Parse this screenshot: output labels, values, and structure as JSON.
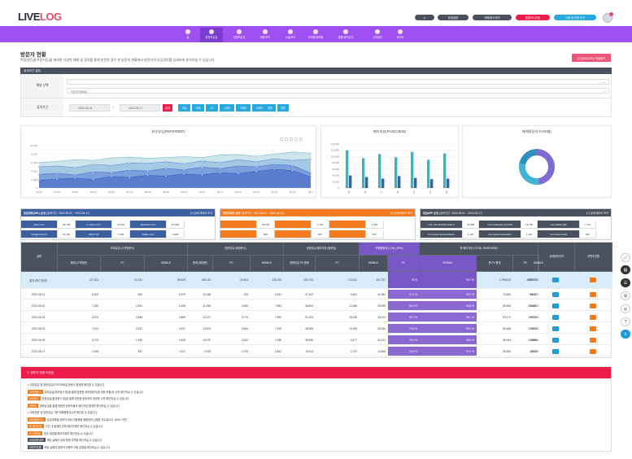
{
  "app": {
    "logo_main": "LIVE",
    "logo_accent": "LOG"
  },
  "top_buttons": [
    {
      "label": "●",
      "color": "#49505e"
    },
    {
      "label": "환경설정",
      "color": "#49505e"
    },
    {
      "label": "매체/광고관리",
      "color": "#49505e"
    },
    {
      "label": "통합모니터링",
      "color": "#ed1c4b"
    },
    {
      "label": "사용 중 연동 도구",
      "color": "#26a9e1"
    }
  ],
  "nav": {
    "items": [
      {
        "label": "홈"
      },
      {
        "label": "방문자유입"
      },
      {
        "label": "컨텐츠분석"
      },
      {
        "label": "회원/코드"
      },
      {
        "label": "소셜/코드"
      },
      {
        "label": "마케팅/전략법"
      },
      {
        "label": "통합/관리분석"
      },
      {
        "label": "고객센터"
      },
      {
        "label": "관리자"
      }
    ]
  },
  "page": {
    "title": "방문자 현황",
    "description": "직접방문(즐겨찾기등)을 제외한 다양한 매체 및 경로를 통해 방문한 경우 본 방문자 현황에서 방문자의 유입경로를 상세하게 분석하실 수 있습니다.",
    "export_label": "유입경로(URL) 엑셀출력"
  },
  "filter": {
    "header": "검색조건 설정",
    "channel_label": "채널 선택",
    "channel_value1": "",
    "channel_value2": "기본(전체)채널",
    "period_label": "검색기간",
    "date_from": "2022-05-01",
    "date_to": "2022-05-17",
    "search_label": "검색",
    "quick": [
      {
        "label": "오늘"
      },
      {
        "label": "어제"
      },
      {
        "label": "1주"
      },
      {
        "label": "1개월"
      },
      {
        "label": "3개월"
      },
      {
        "label": "6개월"
      },
      {
        "label": "전월"
      },
      {
        "label": "당월"
      },
      {
        "label": "직전월"
      }
    ]
  },
  "charts": {
    "referrer_title": "외부유입(REFERRER)",
    "pageview_title": "페이지뷰(PAGEVIEW)",
    "os_title": "매체종합지수(OS별)"
  },
  "chart_data": [
    {
      "type": "area",
      "title": "외부유입(REFERRER)",
      "categories": [
        "05-02",
        "05-03",
        "05-04",
        "05-05",
        "05-06",
        "05-07",
        "05-08",
        "05-09",
        "05-10",
        "05-11",
        "05-12",
        "05-13",
        "05-14",
        "05-15",
        "05-16",
        "05-1"
      ],
      "y_ticks": [
        "10,000",
        "8,000",
        "6,000",
        "4,000",
        "2,000",
        "0"
      ],
      "ylim": [
        0,
        10000
      ],
      "series": [
        {
          "values": [
            6000,
            6300,
            6700,
            6500,
            7100,
            7300,
            7000,
            7200,
            7400,
            7200,
            7800,
            7900,
            7500,
            8000,
            8500,
            8200
          ]
        },
        {
          "values": [
            5000,
            5200,
            4800,
            5600,
            5300,
            5900,
            5800,
            6200,
            5700,
            6400,
            6000,
            6700,
            6200,
            6900,
            6500,
            6800
          ]
        },
        {
          "values": [
            3200,
            3500,
            3100,
            3800,
            3600,
            4200,
            4000,
            4600,
            4300,
            4900,
            4600,
            5200,
            5000,
            5600,
            5300,
            3500
          ]
        },
        {
          "values": [
            1800,
            2100,
            2300,
            2000,
            2700,
            2500,
            3000,
            2800,
            3300,
            3100,
            3600,
            3400,
            3900,
            4400,
            4100,
            2600
          ]
        }
      ]
    },
    {
      "type": "bar",
      "title": "페이지뷰(PAGEVIEW)",
      "categories": [
        "월",
        "화",
        "수",
        "목",
        "금",
        "토",
        "일"
      ],
      "y_ticks": [
        "140,000",
        "120,000",
        "100,000",
        "80,000",
        "60,000",
        "40,000",
        "20,000",
        "0"
      ],
      "ylim": [
        0,
        140000
      ],
      "series": [
        {
          "values": [
            120000,
            95000,
            108000,
            98000,
            115000,
            90000,
            110000
          ]
        },
        {
          "values": [
            40000,
            35000,
            30000,
            38000,
            32000,
            28000,
            30000
          ]
        }
      ]
    },
    {
      "type": "pie",
      "title": "매체종합지수(OS별)",
      "values": [
        48,
        30,
        22
      ]
    }
  ],
  "summary_tables": [
    {
      "title": "유입경로(URL) 순위",
      "period": "(검색기간 : 2022-05-01 ~ 2022-05-17)",
      "more": "(+) 상세 데이터 보기",
      "color": "blue",
      "rows": [
        [
          "naver.com",
          "83,795",
          "m.naver.com",
          "42,225",
          "facebook.com",
          "27,628"
        ],
        [
          "instagram.com",
          "16,403",
          "daum.net",
          "7,282",
          "kakao.com",
          "4,945"
        ]
      ]
    },
    {
      "title": "유입키워드 순위",
      "period": "(검색기간 : 2022-05-01 ~ 2022-05-17)",
      "more": "(+) 상세 데이터 보기",
      "color": "orange",
      "rows": [
        [
          "",
          "26,578",
          "",
          "1,792",
          "",
          "1,062"
        ],
        [
          "",
          "884",
          "",
          "687",
          "",
          "527"
        ]
      ]
    },
    {
      "title": "유입APP 순위",
      "period": "(검색기간 : 2022-05-01 ~ 2022-05-17)",
      "more": "(+) 상세 데이터 보기",
      "color": "dark",
      "rows": [
        [
          "com.nhn.android.search",
          "33,899",
          "com.instagram.android",
          "19,760",
          "com.kakao.talk",
          "7,721"
        ],
        [
          "com.daum.android.daum",
          "1,442",
          "com.facebook.katana",
          "1,129",
          "com.naver.band",
          "526"
        ]
      ]
    }
  ],
  "main_table": {
    "col_date": "날짜",
    "groups": [
      {
        "label": "외부유입\n(고객방문수)"
      },
      {
        "label": "방문유입\n(재방문수)"
      },
      {
        "label": "방문유입 페이지뷰\n(방문뷰)"
      },
      {
        "label": "매체종합지수\n(%) (-50%)"
      },
      {
        "label": "총 페이지뷰\n(TOTAL PAGEVIEW)"
      },
      {
        "label": "상세방문내역"
      },
      {
        "label": "컨텐츠흐름"
      }
    ],
    "sub": [
      "합계\n(고객방문)",
      "PC",
      "MOBILE",
      "합계\n(재방문)",
      "PC",
      "MOBILE",
      "방문유입\nPV 합계",
      "PC",
      "MOBILE",
      "PC",
      "MOBILE",
      "총\nPV 합계",
      "PC",
      "MOBILE"
    ],
    "sum_label": "합계\n(최근 합계)",
    "sum": [
      "127,311",
      "41,332",
      "85,529",
      "108,134",
      "30,604",
      "135,760",
      "182,760",
      "173,011",
      "161,727",
      "78 %",
      "98.7 %",
      "1,799,515",
      "290,977",
      "1,385,750"
    ],
    "rows": [
      {
        "date": "2022-05-01",
        "v": [
          "8,392",
          "692",
          "5,579",
          "10,168",
          "923",
          "9,261",
          "47,402",
          "5,461",
          "41,961",
          "57.6 %",
          "98.7 %",
          "76,552",
          "9,815",
          "66,737"
        ]
      },
      {
        "date": "2022-05-02",
        "v": [
          "7,250",
          "2,591",
          "6,198",
          "11,498",
          "3,584",
          "7,854",
          "48,804",
          "12,645",
          "35,959",
          "65.2 %",
          "98.8 %",
          "85,983",
          "26,060",
          "60,823"
        ]
      },
      {
        "date": "2022-05-03",
        "v": [
          "8,375",
          "3,486",
          "4,889",
          "13,371",
          "5,776",
          "7,592",
          "51,303",
          "15,239",
          "36,114",
          "55.7 %",
          "98.7 %",
          "93,172",
          "24,072",
          "69,100"
        ]
      },
      {
        "date": "2022-05-04",
        "v": [
          "7,674",
          "3,337",
          "4,327",
          "13,403",
          "5,564",
          "7,919",
          "48,083",
          "13,159",
          "35,054",
          "74.6 %",
          "96.3 %",
          "80,458",
          "21,309",
          "59,149"
        ]
      },
      {
        "date": "2022-05-05",
        "v": [
          "6,070",
          "1,530",
          "4,409",
          "10,070",
          "2,812",
          "7,258",
          "38,536",
          "6,477",
          "32,121",
          "75.2 %",
          "98.6 %",
          "65,944",
          "11,888",
          "54,946"
        ]
      },
      {
        "date": "2022-05-17",
        "v": [
          "2,498",
          "837",
          "1,621",
          "3,918",
          "1,976",
          "2,842",
          "15,913",
          "2,747",
          "12,566",
          "93.9 %",
          "97.1 %",
          "26,582",
          "4,823",
          "23,789"
        ]
      }
    ]
  },
  "notes": {
    "title": "방문자 현황 도움말",
    "lines": [
      {
        "tag": "",
        "text": "외부유입 및 방문유입의 PC/모바일 방문수 합계를 확인할 수 있습니다."
      },
      {
        "tag": "고객방문수",
        "text": "외부유입(외부링크 등)을 통해 방문한 외부방문자(첫 방문 포함)의 수를 확인하실 수 있습니다."
      },
      {
        "tag": "재방문수",
        "text": "방문유입(즐겨찾기 등)을 통해 방문한 방문자의 재방문 수를 확인하실 수 있습니다."
      },
      {
        "tag": "방문뷰",
        "text": "방문유입을 통해 방문한 방문자들의 페이지뷰 합계를 확인하실 수 있습니다."
      },
      {
        "tag": "",
        "text": "외부방문 및 방문유입 기준 매체종합지수를 확인할 수 있습니다."
      },
      {
        "tag": "매체종합지수",
        "text": "유입매체별 방문자 대비 이탈률을 종합하여 산출한 지수입니다. (50% 기준)"
      },
      {
        "tag": "총 페이지뷰",
        "text": "기간 내 발생한 전체 페이지뷰를 확인하실 수 있습니다."
      },
      {
        "tag": "PC/모바일",
        "text": "접속 환경별 페이지뷰를 확인하실 수 있습니다."
      },
      {
        "tag": "상세방문내역",
        "text": "해당 날짜의 상세 방문 내역을 확인하실 수 있습니다."
      },
      {
        "tag": "컨텐츠흐름",
        "text": "해당 날짜의 방문자 컨텐츠 이동 흐름을 확인하실 수 있습니다."
      }
    ]
  }
}
